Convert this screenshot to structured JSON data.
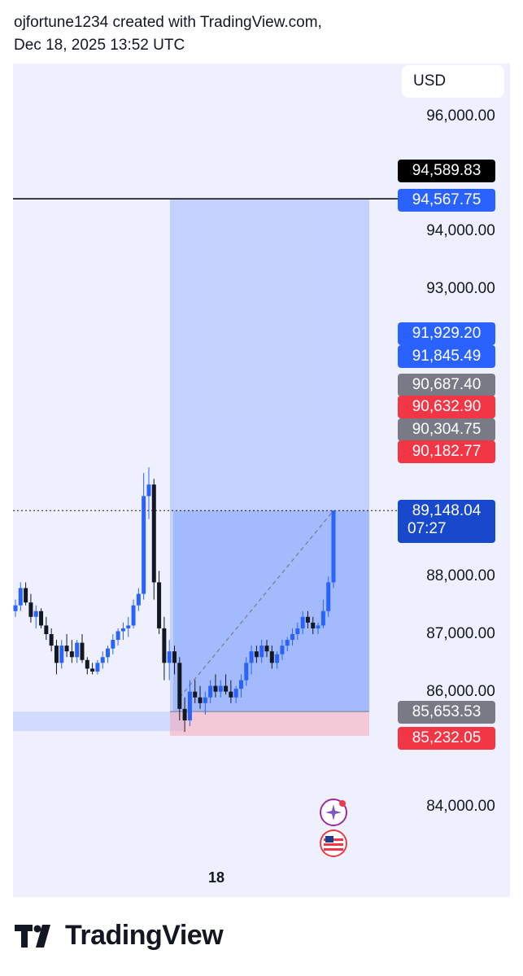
{
  "header": {
    "line1": "ojfortune1234 created with TradingView.com,",
    "line2": "Dec 18, 2025 13:52 UTC"
  },
  "currency": "USD",
  "brand": "TradingView",
  "colors": {
    "bull": "#2962ff",
    "bear": "#131722",
    "profit_zone": "#2962ff",
    "loss_zone": "#f7a1b4",
    "tag_blue": "#2962ff",
    "tag_black": "#000000",
    "tag_gray": "#787b86",
    "tag_red": "#f23645",
    "tag_current": "#1848cc"
  },
  "chart_data": {
    "type": "candlestick",
    "y_axis": {
      "ticks": [
        "96,000.00",
        "94,000.00",
        "93,000.00",
        "88,000.00",
        "87,000.00",
        "86,000.00",
        "84,000.00"
      ],
      "tick_values": [
        96000,
        94000,
        93000,
        88000,
        87000,
        86000,
        84000
      ],
      "ylim": [
        83300,
        97700
      ]
    },
    "x_axis": {
      "ticks": [
        "18"
      ]
    },
    "horizontal_line": 94567.75,
    "current_price_line": 89148.04,
    "price_tags": [
      {
        "text": "94,589.83",
        "value": 94589.83,
        "kind": "black"
      },
      {
        "text": "94,567.75",
        "value": 94567.75,
        "kind": "blue"
      },
      {
        "text": "91,929.20",
        "value": 91929.2,
        "kind": "blue"
      },
      {
        "text": "91,845.49",
        "value": 91845.49,
        "kind": "blue"
      },
      {
        "text": "90,687.40",
        "value": 90687.4,
        "kind": "gray"
      },
      {
        "text": "90,632.90",
        "value": 90632.9,
        "kind": "red"
      },
      {
        "text": "90,304.75",
        "value": 90304.75,
        "kind": "gray"
      },
      {
        "text": "90,182.77",
        "value": 90182.77,
        "kind": "red"
      },
      {
        "text": "85,653.53",
        "value": 85653.53,
        "kind": "gray"
      },
      {
        "text": "85,232.05",
        "value": 85232.05,
        "kind": "red"
      }
    ],
    "current_price": {
      "price": "89,148.04",
      "countdown": "07:27",
      "value": 89148.04
    },
    "position": {
      "entry": 85653.53,
      "target": 94567.75,
      "stop": 85232.05
    },
    "candles": [
      [
        87400,
        87600,
        87300,
        87500
      ],
      [
        87500,
        87900,
        87400,
        87800
      ],
      [
        87800,
        87900,
        87500,
        87550
      ],
      [
        87550,
        87700,
        87200,
        87300
      ],
      [
        87300,
        87500,
        87100,
        87400
      ],
      [
        87400,
        87450,
        87100,
        87150
      ],
      [
        87150,
        87300,
        86900,
        87000
      ],
      [
        87000,
        87100,
        86700,
        86800
      ],
      [
        86800,
        86900,
        86300,
        86500
      ],
      [
        86500,
        86900,
        86400,
        86800
      ],
      [
        86800,
        87000,
        86600,
        86700
      ],
      [
        86700,
        86900,
        86500,
        86600
      ],
      [
        86600,
        86900,
        86500,
        86850
      ],
      [
        86850,
        87000,
        86500,
        86550
      ],
      [
        86550,
        86600,
        86300,
        86400
      ],
      [
        86400,
        86500,
        86300,
        86350
      ],
      [
        86350,
        86550,
        86300,
        86500
      ],
      [
        86500,
        86700,
        86400,
        86600
      ],
      [
        86600,
        86800,
        86500,
        86750
      ],
      [
        86750,
        87000,
        86650,
        86900
      ],
      [
        86900,
        87100,
        86800,
        87050
      ],
      [
        87050,
        87200,
        86900,
        87100
      ],
      [
        87100,
        87300,
        86950,
        87150
      ],
      [
        87150,
        87600,
        87100,
        87500
      ],
      [
        87500,
        87800,
        87400,
        87700
      ],
      [
        87700,
        89800,
        87600,
        89400
      ],
      [
        89400,
        89900,
        89000,
        89600
      ],
      [
        89600,
        89700,
        87600,
        87900
      ],
      [
        87900,
        88100,
        87000,
        87100
      ],
      [
        87100,
        87300,
        86200,
        86500
      ],
      [
        86500,
        86900,
        86200,
        86700
      ],
      [
        86700,
        86800,
        86300,
        86500
      ],
      [
        86500,
        86600,
        85500,
        85700
      ],
      [
        85700,
        85900,
        85300,
        85500
      ],
      [
        85500,
        86200,
        85400,
        86000
      ],
      [
        86000,
        86200,
        85800,
        85900
      ],
      [
        85900,
        86100,
        85700,
        85800
      ],
      [
        85800,
        86000,
        85600,
        85900
      ],
      [
        85900,
        86200,
        85800,
        86100
      ],
      [
        86100,
        86300,
        85900,
        86000
      ],
      [
        86000,
        86200,
        85900,
        86100
      ],
      [
        86100,
        86300,
        85950,
        86000
      ],
      [
        86000,
        86200,
        85800,
        85900
      ],
      [
        85900,
        86100,
        85800,
        86050
      ],
      [
        86050,
        86300,
        85900,
        86200
      ],
      [
        86200,
        86600,
        86100,
        86500
      ],
      [
        86500,
        86800,
        86300,
        86700
      ],
      [
        86700,
        86800,
        86500,
        86600
      ],
      [
        86600,
        86900,
        86500,
        86800
      ],
      [
        86800,
        86900,
        86600,
        86700
      ],
      [
        86700,
        86800,
        86400,
        86500
      ],
      [
        86500,
        86700,
        86400,
        86650
      ],
      [
        86650,
        86900,
        86550,
        86800
      ],
      [
        86800,
        86950,
        86700,
        86900
      ],
      [
        86900,
        87100,
        86800,
        87000
      ],
      [
        87000,
        87200,
        86900,
        87100
      ],
      [
        87100,
        87400,
        87000,
        87300
      ],
      [
        87300,
        87400,
        87100,
        87200
      ],
      [
        87200,
        87300,
        87000,
        87100
      ],
      [
        87100,
        87200,
        87000,
        87150
      ],
      [
        87150,
        87600,
        87100,
        87400
      ],
      [
        87400,
        88000,
        87300,
        87900
      ],
      [
        87900,
        89148,
        87800,
        89148
      ]
    ]
  }
}
